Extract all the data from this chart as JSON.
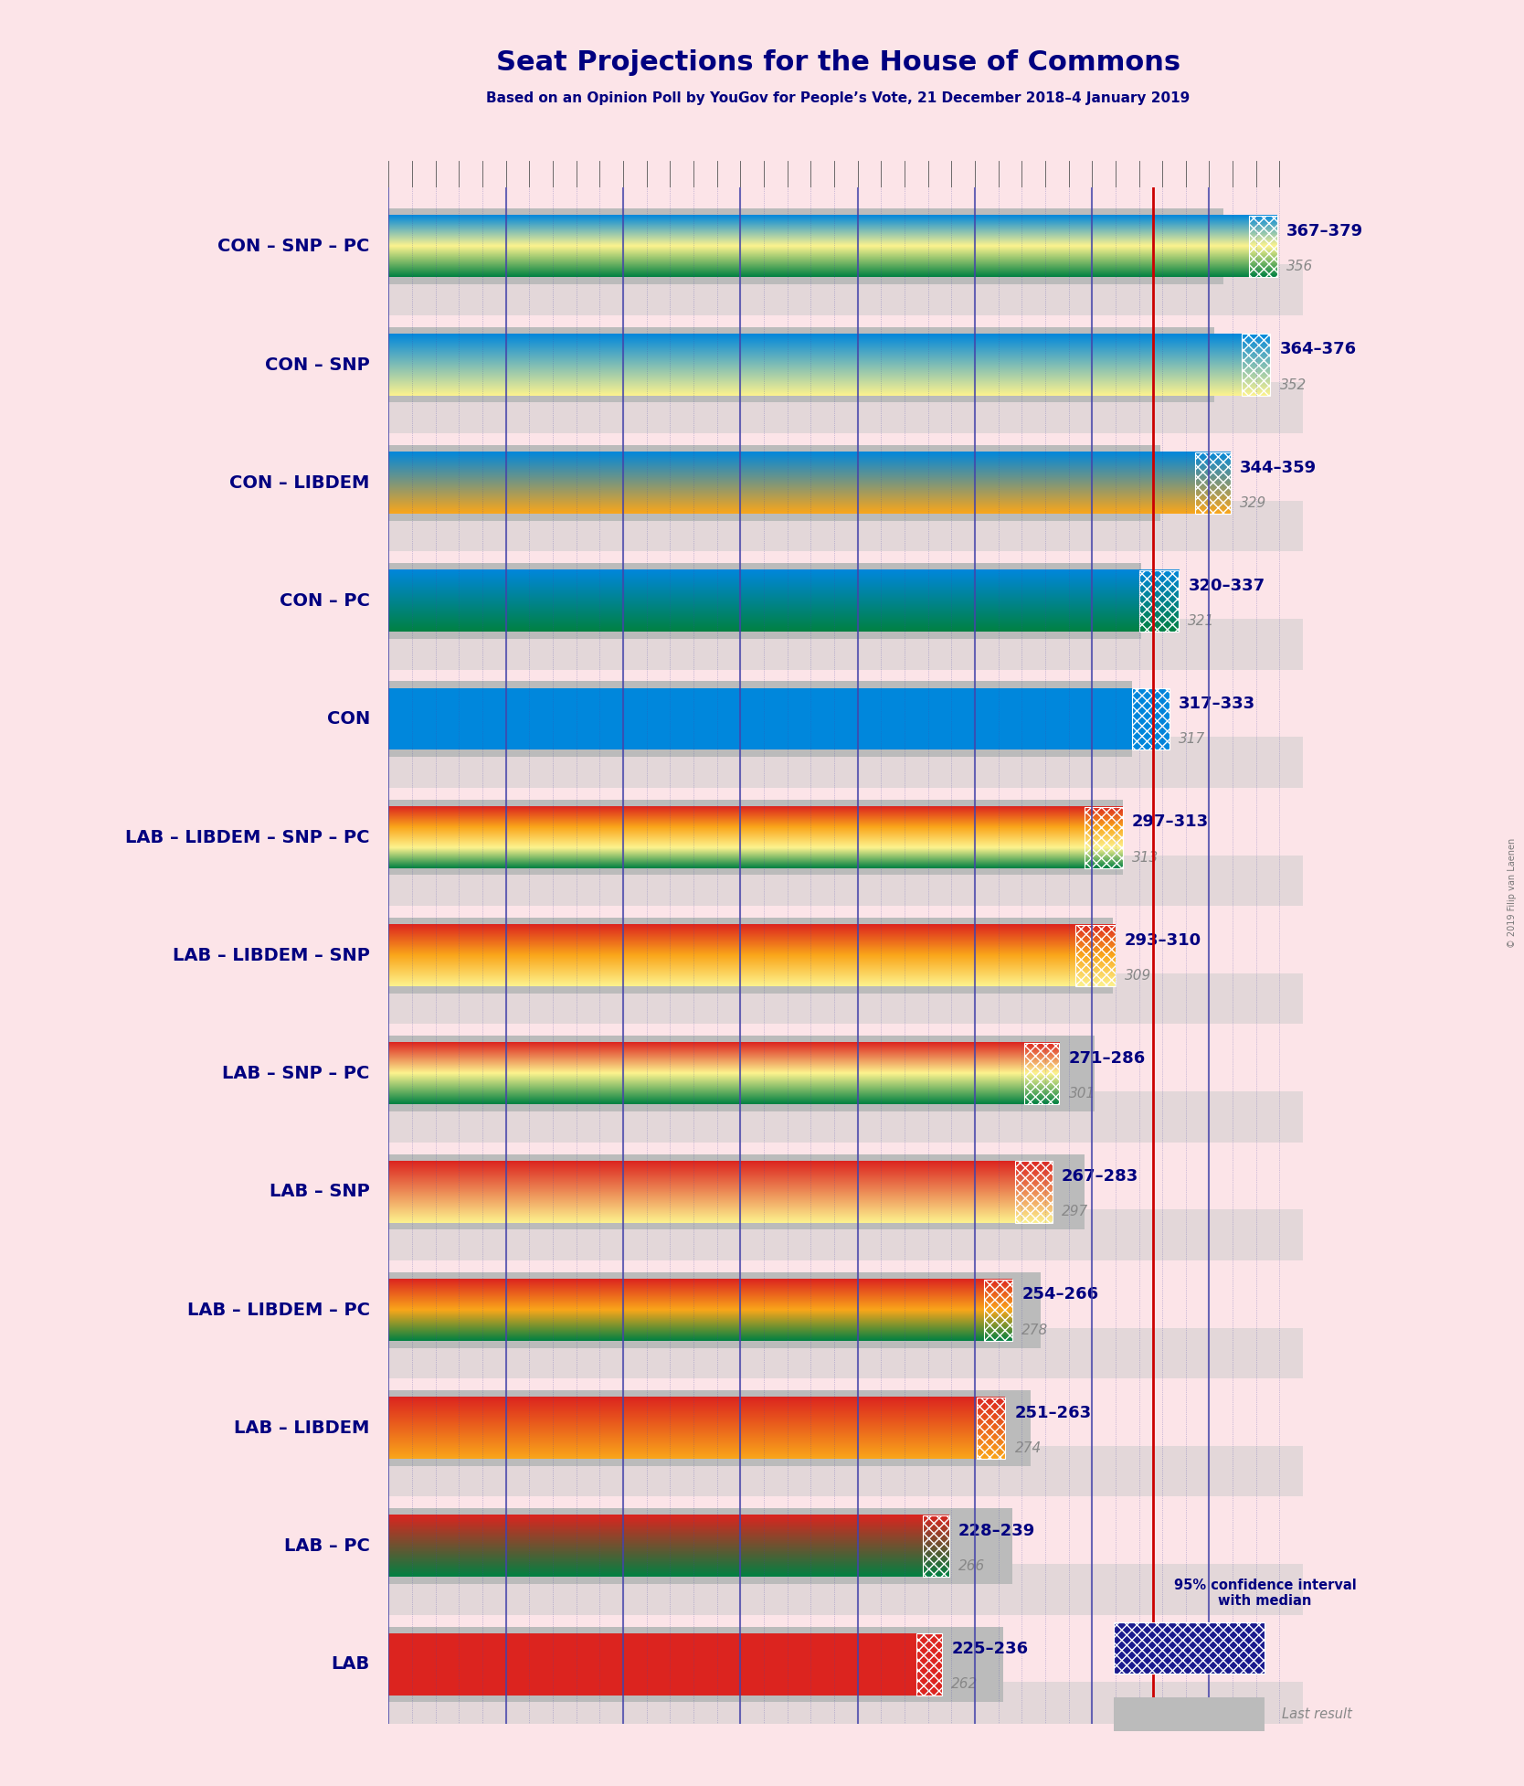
{
  "title": "Seat Projections for the House of Commons",
  "subtitle": "Based on an Opinion Poll by YouGov for People’s Vote, 21 December 2018–4 January 2019",
  "copyright": "© 2019 Filip van Laenen",
  "background_color": "#fce4e8",
  "bar_bg_color": "#c8c8c8",
  "title_color": "#000080",
  "subtitle_color": "#000080",
  "majority_line": 326,
  "majority_line_color": "#cc0000",
  "axis_max": 390,
  "rows": [
    {
      "label": "CON – SNP – PC",
      "range_low": 367,
      "range_high": 379,
      "last_result": 356,
      "gradient_colors": [
        "#0087DC",
        "#FDF38E",
        "#008142"
      ],
      "hatch_color": "#0087DC"
    },
    {
      "label": "CON – SNP",
      "range_low": 364,
      "range_high": 376,
      "last_result": 352,
      "gradient_colors": [
        "#0087DC",
        "#FDF38E"
      ],
      "hatch_color": "#0087DC"
    },
    {
      "label": "CON – LIBDEM",
      "range_low": 344,
      "range_high": 359,
      "last_result": 329,
      "gradient_colors": [
        "#0087DC",
        "#FAA61A"
      ],
      "hatch_color": "#0087DC"
    },
    {
      "label": "CON – PC",
      "range_low": 320,
      "range_high": 337,
      "last_result": 321,
      "gradient_colors": [
        "#0087DC",
        "#008142"
      ],
      "hatch_color": "#0087DC"
    },
    {
      "label": "CON",
      "range_low": 317,
      "range_high": 333,
      "last_result": 317,
      "gradient_colors": [
        "#0087DC"
      ],
      "hatch_color": "#0087DC"
    },
    {
      "label": "LAB – LIBDEM – SNP – PC",
      "range_low": 297,
      "range_high": 313,
      "last_result": 313,
      "gradient_colors": [
        "#DC241F",
        "#FAA61A",
        "#FDF38E",
        "#008142"
      ],
      "hatch_color": "#DC241F"
    },
    {
      "label": "LAB – LIBDEM – SNP",
      "range_low": 293,
      "range_high": 310,
      "last_result": 309,
      "gradient_colors": [
        "#DC241F",
        "#FAA61A",
        "#FDF38E"
      ],
      "hatch_color": "#DC241F"
    },
    {
      "label": "LAB – SNP – PC",
      "range_low": 271,
      "range_high": 286,
      "last_result": 301,
      "gradient_colors": [
        "#DC241F",
        "#FDF38E",
        "#008142"
      ],
      "hatch_color": "#DC241F"
    },
    {
      "label": "LAB – SNP",
      "range_low": 267,
      "range_high": 283,
      "last_result": 297,
      "gradient_colors": [
        "#DC241F",
        "#FDF38E"
      ],
      "hatch_color": "#DC241F"
    },
    {
      "label": "LAB – LIBDEM – PC",
      "range_low": 254,
      "range_high": 266,
      "last_result": 278,
      "gradient_colors": [
        "#DC241F",
        "#FAA61A",
        "#008142"
      ],
      "hatch_color": "#DC241F"
    },
    {
      "label": "LAB – LIBDEM",
      "range_low": 251,
      "range_high": 263,
      "last_result": 274,
      "gradient_colors": [
        "#DC241F",
        "#FAA61A"
      ],
      "hatch_color": "#DC241F"
    },
    {
      "label": "LAB – PC",
      "range_low": 228,
      "range_high": 239,
      "last_result": 266,
      "gradient_colors": [
        "#DC241F",
        "#008142"
      ],
      "hatch_color": "#DC241F"
    },
    {
      "label": "LAB",
      "range_low": 225,
      "range_high": 236,
      "last_result": 262,
      "gradient_colors": [
        "#DC241F"
      ],
      "hatch_color": "#DC241F"
    }
  ],
  "label_color": "#000080",
  "range_label_color": "#000080",
  "last_result_color": "#888888",
  "legend_text": "95% confidence interval\nwith median",
  "legend_last_text": "Last result"
}
